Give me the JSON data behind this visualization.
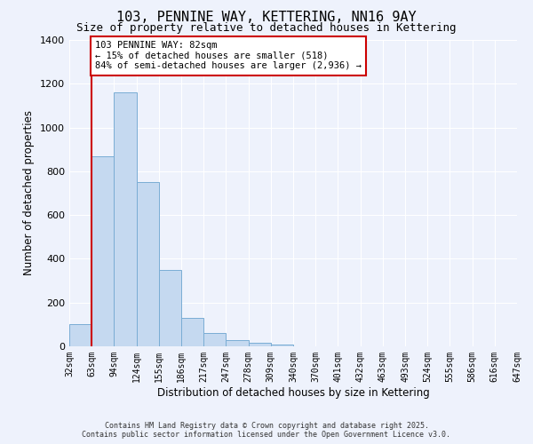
{
  "title": "103, PENNINE WAY, KETTERING, NN16 9AY",
  "subtitle": "Size of property relative to detached houses in Kettering",
  "xlabel": "Distribution of detached houses by size in Kettering",
  "ylabel": "Number of detached properties",
  "bin_labels": [
    "32sqm",
    "63sqm",
    "94sqm",
    "124sqm",
    "155sqm",
    "186sqm",
    "217sqm",
    "247sqm",
    "278sqm",
    "309sqm",
    "340sqm",
    "370sqm",
    "401sqm",
    "432sqm",
    "463sqm",
    "493sqm",
    "524sqm",
    "555sqm",
    "586sqm",
    "616sqm",
    "647sqm"
  ],
  "values": [
    100,
    870,
    1160,
    750,
    350,
    130,
    60,
    30,
    15,
    10,
    0,
    0,
    0,
    0,
    0,
    0,
    0,
    0,
    0,
    0
  ],
  "bar_color": "#c5d9f0",
  "bar_edge_color": "#7aadd4",
  "background_color": "#eef2fc",
  "grid_color": "#ffffff",
  "vline_color": "#cc0000",
  "vline_x_index": 1,
  "annotation_title": "103 PENNINE WAY: 82sqm",
  "annotation_line1": "← 15% of detached houses are smaller (518)",
  "annotation_line2": "84% of semi-detached houses are larger (2,936) →",
  "annotation_box_color": "#cc0000",
  "ylim": [
    0,
    1400
  ],
  "yticks": [
    0,
    200,
    400,
    600,
    800,
    1000,
    1200,
    1400
  ],
  "footer1": "Contains HM Land Registry data © Crown copyright and database right 2025.",
  "footer2": "Contains public sector information licensed under the Open Government Licence v3.0.",
  "figsize": [
    6.0,
    5.0
  ],
  "dpi": 100
}
